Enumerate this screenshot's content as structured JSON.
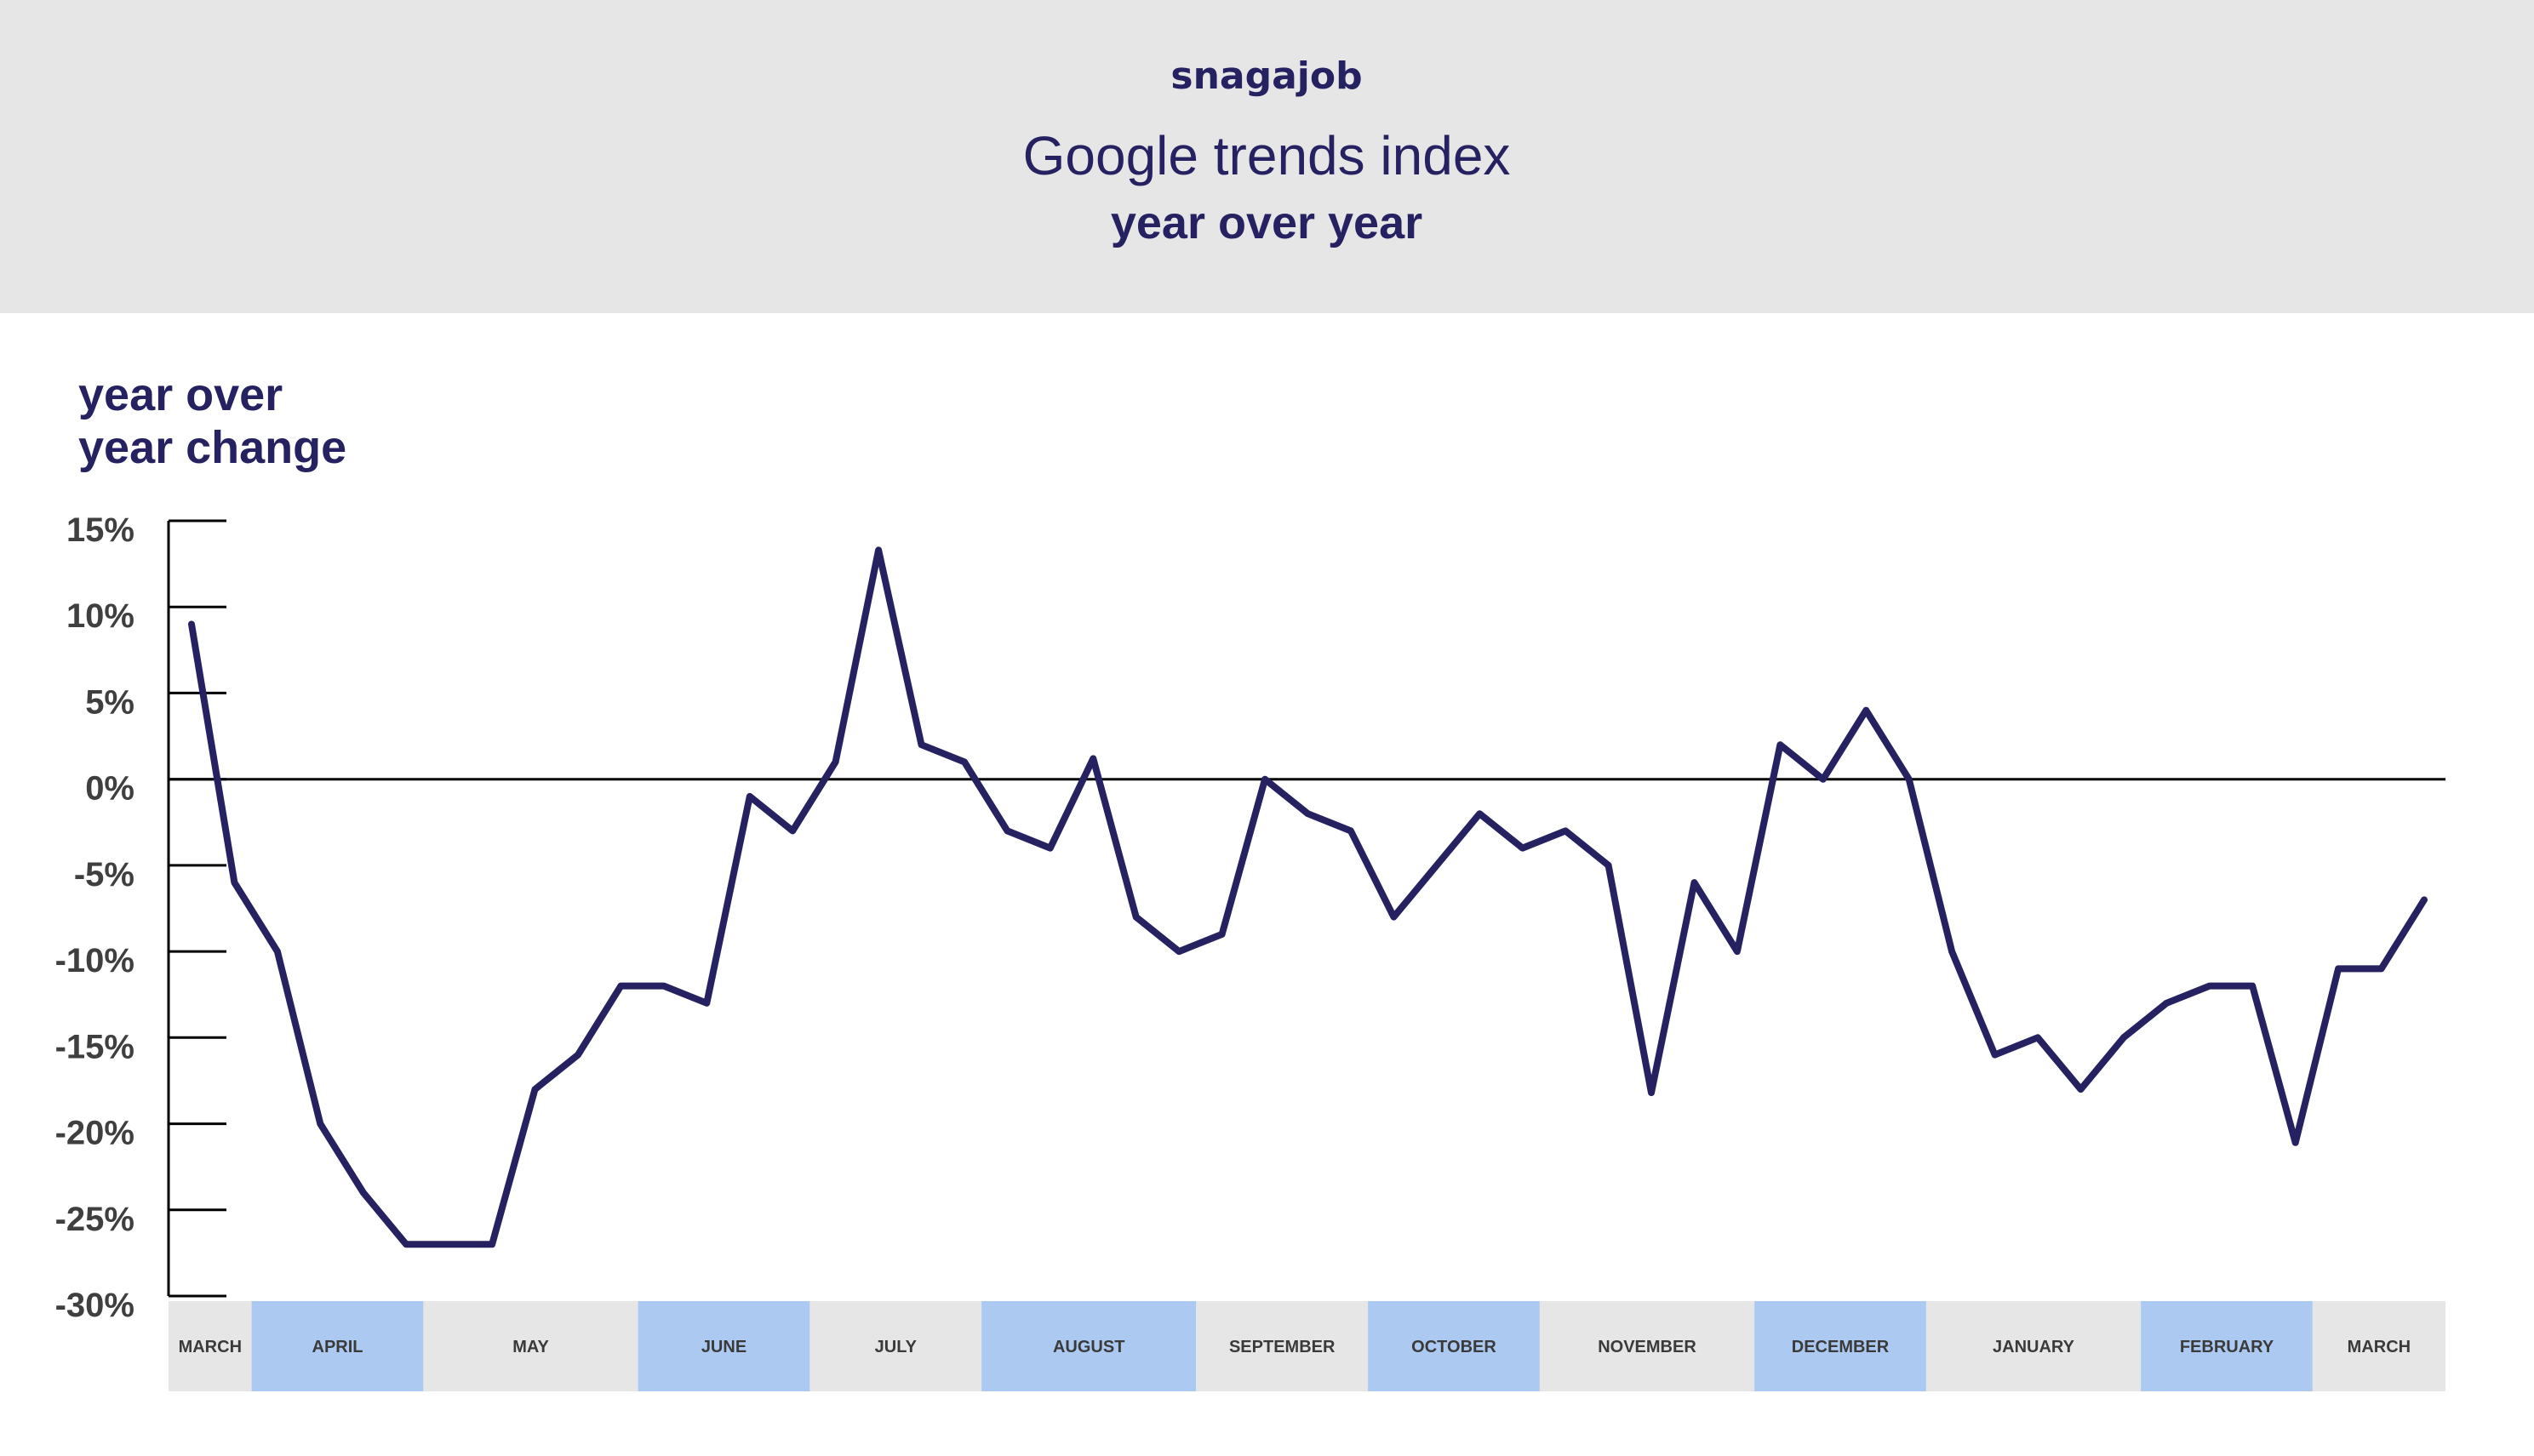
{
  "brand": "snagajob",
  "header": {
    "title": "Google trends index",
    "subtitle": "year over year"
  },
  "colors": {
    "header_bg": "#e6e6e7",
    "text": "#262262",
    "line": "#262262",
    "month_band_gray": "#e6e6e7",
    "month_band_blue": "#acc9f1",
    "month_label": "#3a3a3a",
    "tick_label": "#3f3f3f",
    "axis": "#000000"
  },
  "chart_data": {
    "type": "line",
    "title": "Google trends index",
    "subtitle": "year over year",
    "ylabel": "year over year change",
    "ylim": [
      -30,
      15
    ],
    "yticks": [
      15,
      10,
      5,
      0,
      -5,
      -10,
      -15,
      -20,
      -25,
      -30
    ],
    "ytick_labels": [
      "15%",
      "10%",
      "5%",
      "0%",
      "-5%",
      "-10%",
      "-15%",
      "-20%",
      "-25%",
      "-30%"
    ],
    "zero_line": true,
    "grid": false,
    "legend": "none",
    "x": [
      0,
      1,
      2,
      3,
      4,
      5,
      6,
      7,
      8,
      9,
      10,
      11,
      12,
      13,
      14,
      15,
      16,
      17,
      18,
      19,
      20,
      21,
      22,
      23,
      24,
      25,
      26,
      27,
      28,
      29,
      30,
      31,
      32,
      33,
      34,
      35,
      36,
      37,
      38,
      39,
      40,
      41,
      42,
      43,
      44,
      45,
      46,
      47,
      48,
      49,
      50,
      51,
      52
    ],
    "series": [
      {
        "values": [
          9,
          -6,
          -10,
          -20,
          -24,
          -27,
          -27,
          -27,
          -18,
          -16,
          -12,
          -12,
          -13,
          -1,
          -3,
          1,
          13.3,
          2,
          1,
          -3,
          -4,
          1.2,
          -8,
          -10,
          -9,
          0,
          -2,
          -3,
          -8,
          -5,
          -2,
          -4,
          -3,
          -5,
          -18.2,
          -6,
          -10,
          2,
          0,
          4,
          0,
          -10,
          -16,
          -15,
          -18,
          -15,
          -13,
          -12,
          -12,
          -21.1,
          -11,
          -11,
          -7
        ]
      }
    ],
    "x_months": [
      {
        "label": "MARCH",
        "start": 0,
        "end": 1.4,
        "band": "gray"
      },
      {
        "label": "APRIL",
        "start": 1.4,
        "end": 5.4,
        "band": "blue"
      },
      {
        "label": "MAY",
        "start": 5.4,
        "end": 10.4,
        "band": "gray"
      },
      {
        "label": "JUNE",
        "start": 10.4,
        "end": 14.4,
        "band": "blue"
      },
      {
        "label": "JULY",
        "start": 14.4,
        "end": 18.4,
        "band": "gray"
      },
      {
        "label": "AUGUST",
        "start": 18.4,
        "end": 23.4,
        "band": "blue"
      },
      {
        "label": "SEPTEMBER",
        "start": 23.4,
        "end": 27.4,
        "band": "gray"
      },
      {
        "label": "OCTOBER",
        "start": 27.4,
        "end": 31.4,
        "band": "blue"
      },
      {
        "label": "NOVEMBER",
        "start": 31.4,
        "end": 36.4,
        "band": "gray"
      },
      {
        "label": "DECEMBER",
        "start": 36.4,
        "end": 40.4,
        "band": "blue"
      },
      {
        "label": "JANUARY",
        "start": 40.4,
        "end": 45.4,
        "band": "gray"
      },
      {
        "label": "FEBRUARY",
        "start": 45.4,
        "end": 49.4,
        "band": "blue"
      },
      {
        "label": "MARCH",
        "start": 49.4,
        "end": 52.5,
        "band": "gray"
      }
    ]
  }
}
